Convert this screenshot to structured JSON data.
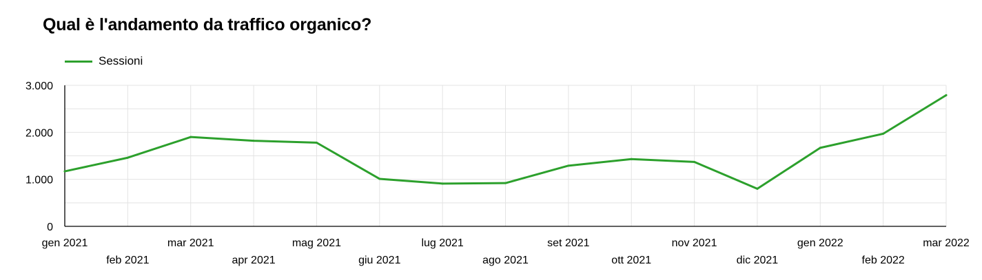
{
  "title": "Qual è l'andamento da traffico organico?",
  "chart_data": {
    "type": "line",
    "title": "Qual è l'andamento da traffico organico?",
    "x": [
      "gen 2021",
      "feb 2021",
      "mar 2021",
      "apr 2021",
      "mag 2021",
      "giu 2021",
      "lug 2021",
      "ago 2021",
      "set 2021",
      "ott 2021",
      "nov 2021",
      "dic 2021",
      "gen 2022",
      "feb 2022",
      "mar 2022"
    ],
    "series": [
      {
        "name": "Sessioni",
        "color": "#2ca02c",
        "values": [
          1170,
          1460,
          1900,
          1820,
          1780,
          1010,
          910,
          920,
          1290,
          1430,
          1370,
          800,
          1670,
          1970,
          2790
        ]
      }
    ],
    "ylim": [
      0,
      3000
    ],
    "yticks": [
      0,
      1000,
      2000,
      3000
    ],
    "ytick_labels": [
      "0",
      "1.000",
      "2.000",
      "3.000"
    ],
    "xlabel": "",
    "ylabel": "",
    "grid": true,
    "legend": "top-left"
  }
}
